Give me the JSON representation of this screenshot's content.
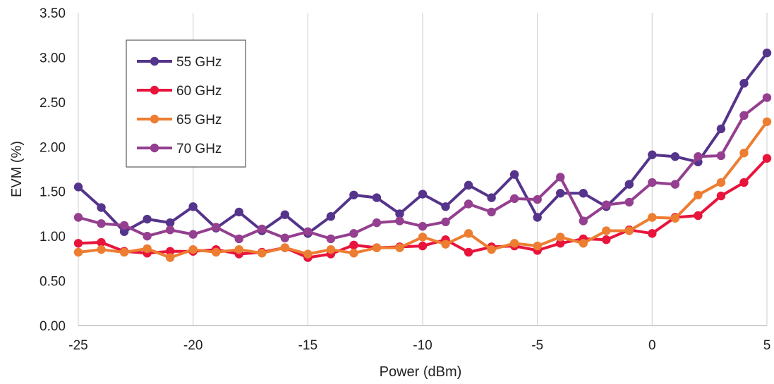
{
  "chart_data": {
    "type": "line",
    "xlabel": "Power (dBm)",
    "ylabel": "EVM (%)",
    "xlim": [
      -25,
      5
    ],
    "ylim": [
      0,
      3.5
    ],
    "x_ticks": [
      "-25",
      "-20",
      "-15",
      "-10",
      "-5",
      "0",
      "5"
    ],
    "y_ticks": [
      "0.00",
      "0.50",
      "1.00",
      "1.50",
      "2.00",
      "2.50",
      "3.00",
      "3.50"
    ],
    "grid": "vertical",
    "legend_position": "top-left",
    "x": [
      -25,
      -24,
      -23,
      -22,
      -21,
      -20,
      -19,
      -18,
      -17,
      -16,
      -15,
      -14,
      -13,
      -12,
      -11,
      -10,
      -9,
      -8,
      -7,
      -6,
      -5,
      -4,
      -3,
      -2,
      -1,
      0,
      1,
      2,
      3,
      4,
      5
    ],
    "series": [
      {
        "name": "55 GHz",
        "color": "#55348b",
        "values": [
          1.55,
          1.32,
          1.05,
          1.19,
          1.15,
          1.33,
          1.09,
          1.27,
          1.06,
          1.24,
          1.03,
          1.22,
          1.46,
          1.43,
          1.25,
          1.47,
          1.33,
          1.57,
          1.43,
          1.69,
          1.21,
          1.48,
          1.48,
          1.33,
          1.58,
          1.91,
          1.89,
          1.83,
          2.2,
          2.71,
          3.05
        ]
      },
      {
        "name": "60 GHz",
        "color": "#e8143c",
        "values": [
          0.92,
          0.93,
          0.83,
          0.81,
          0.83,
          0.83,
          0.85,
          0.8,
          0.82,
          0.87,
          0.76,
          0.8,
          0.9,
          0.87,
          0.88,
          0.89,
          0.96,
          0.82,
          0.88,
          0.89,
          0.84,
          0.92,
          0.97,
          0.96,
          1.07,
          1.03,
          1.21,
          1.23,
          1.45,
          1.6,
          1.87
        ]
      },
      {
        "name": "65 GHz",
        "color": "#ed7d31",
        "values": [
          0.82,
          0.85,
          0.82,
          0.86,
          0.76,
          0.85,
          0.82,
          0.85,
          0.81,
          0.87,
          0.8,
          0.85,
          0.81,
          0.87,
          0.87,
          0.99,
          0.91,
          1.03,
          0.85,
          0.92,
          0.89,
          0.99,
          0.92,
          1.06,
          1.06,
          1.21,
          1.2,
          1.46,
          1.6,
          1.93,
          2.28
        ]
      },
      {
        "name": "70 GHz",
        "color": "#943f8f",
        "values": [
          1.21,
          1.14,
          1.12,
          1.0,
          1.07,
          1.02,
          1.1,
          0.97,
          1.08,
          0.98,
          1.05,
          0.97,
          1.03,
          1.15,
          1.17,
          1.11,
          1.16,
          1.36,
          1.27,
          1.42,
          1.41,
          1.66,
          1.17,
          1.35,
          1.38,
          1.6,
          1.58,
          1.89,
          1.9,
          2.35,
          2.55
        ]
      }
    ]
  }
}
